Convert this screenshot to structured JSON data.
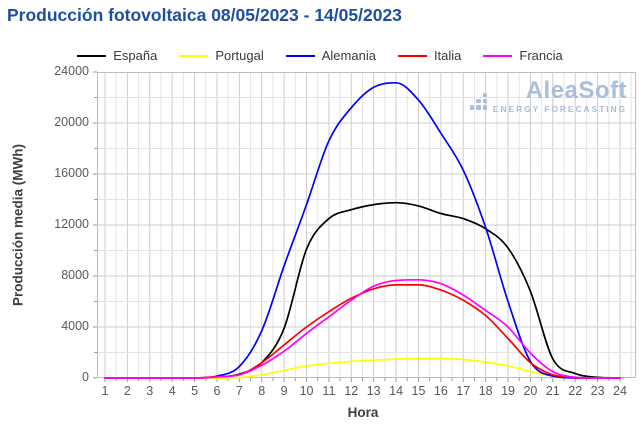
{
  "title": "Producción fotovoltaica 08/05/2023 - 14/05/2023",
  "watermark": {
    "name": "AleaSoft",
    "subtitle": "ENERGY FORECASTING"
  },
  "colors": {
    "title": "#1e4fa0",
    "tick_text": "#595959",
    "axis_label_text": "#3f3f3f",
    "grid_minor": "#e4e4e4",
    "grid_major": "#cdcdcd",
    "plot_border": "#bdbdbd",
    "tick_mark": "#9a9a9a",
    "watermark": "#a9bedb"
  },
  "chart_data": {
    "type": "line",
    "title": "Producción fotovoltaica 08/05/2023 - 14/05/2023",
    "xlabel": "Hora",
    "ylabel": "Producción media (MWh)",
    "xlim": [
      1,
      24
    ],
    "ylim": [
      0,
      24000
    ],
    "xticks": [
      1,
      2,
      3,
      4,
      5,
      6,
      7,
      8,
      9,
      10,
      11,
      12,
      13,
      14,
      15,
      16,
      17,
      18,
      19,
      20,
      21,
      22,
      23,
      24
    ],
    "yticks": [
      0,
      4000,
      8000,
      12000,
      16000,
      20000,
      24000
    ],
    "grid": true,
    "legend_position": "top",
    "x": [
      1,
      2,
      3,
      4,
      5,
      6,
      7,
      8,
      9,
      10,
      11,
      12,
      13,
      14,
      15,
      16,
      17,
      18,
      19,
      20,
      21,
      22,
      23,
      24
    ],
    "series": [
      {
        "name": "España",
        "color": "#000000",
        "values": [
          0,
          0,
          0,
          0,
          0,
          50,
          300,
          1200,
          3900,
          10100,
          12500,
          13200,
          13600,
          13750,
          13500,
          12900,
          12500,
          11700,
          10200,
          6800,
          1500,
          350,
          50,
          0
        ]
      },
      {
        "name": "Portugal",
        "color": "#ffff00",
        "values": [
          0,
          0,
          0,
          0,
          0,
          0,
          30,
          250,
          600,
          950,
          1150,
          1300,
          1400,
          1480,
          1520,
          1530,
          1450,
          1250,
          950,
          500,
          150,
          30,
          0,
          0
        ]
      },
      {
        "name": "Alemania",
        "color": "#0000ff",
        "values": [
          0,
          0,
          0,
          0,
          0,
          150,
          900,
          3700,
          8800,
          13600,
          18600,
          21200,
          22800,
          23150,
          21800,
          19200,
          16300,
          11800,
          6000,
          1300,
          150,
          0,
          0,
          0
        ]
      },
      {
        "name": "Italia",
        "color": "#ff0000",
        "values": [
          0,
          0,
          0,
          0,
          0,
          100,
          250,
          1200,
          2600,
          4000,
          5200,
          6250,
          7000,
          7300,
          7300,
          6900,
          6100,
          4900,
          3100,
          1200,
          250,
          30,
          0,
          0
        ]
      },
      {
        "name": "Francia",
        "color": "#ff00ff",
        "values": [
          0,
          0,
          0,
          0,
          0,
          80,
          250,
          1000,
          2100,
          3500,
          4800,
          6100,
          7200,
          7650,
          7700,
          7400,
          6500,
          5300,
          4000,
          1950,
          500,
          60,
          0,
          0
        ]
      }
    ]
  }
}
